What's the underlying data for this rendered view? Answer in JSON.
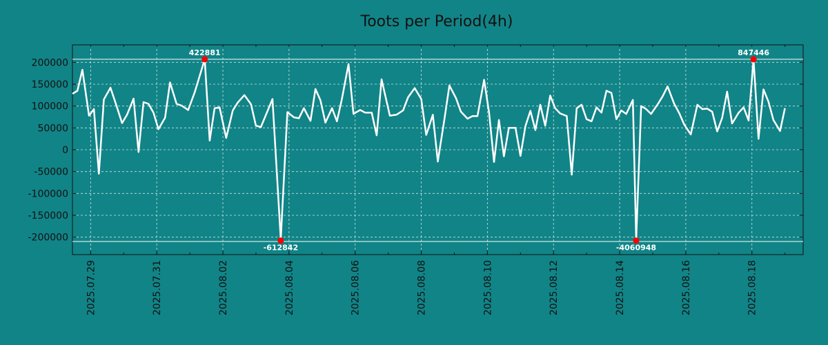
{
  "chart_data": {
    "type": "line",
    "title": "Toots per Period(4h)",
    "xlabel": "",
    "ylabel": "",
    "ylim": [
      -240000,
      240000
    ],
    "x_range": [
      -0.55,
      21.55
    ],
    "grid": true,
    "yticks": [
      -200000,
      -150000,
      -100000,
      -50000,
      0,
      50000,
      100000,
      150000,
      200000
    ],
    "ytick_labels": [
      "-200000",
      "-150000",
      "-100000",
      "-50000",
      "0",
      "50000",
      "100000",
      "150000",
      "200000"
    ],
    "xticks": [
      0,
      2,
      4,
      6,
      8,
      10,
      12,
      14,
      16,
      18,
      20
    ],
    "xtick_labels": [
      "2025.07.29",
      "2025.07.31",
      "2025.08.02",
      "2025.08.04",
      "2025.08.06",
      "2025.08.08",
      "2025.08.10",
      "2025.08.12",
      "2025.08.14",
      "2025.08.16",
      "2025.08.18"
    ],
    "series": [
      {
        "name": "toots",
        "color": "#ffffff",
        "points": [
          [
            -0.55,
            128000
          ],
          [
            -0.4,
            135000
          ],
          [
            -0.25,
            183000
          ],
          [
            -0.05,
            78000
          ],
          [
            0.1,
            93000
          ],
          [
            0.25,
            -55000
          ],
          [
            0.4,
            115000
          ],
          [
            0.6,
            142000
          ],
          [
            0.75,
            108000
          ],
          [
            0.95,
            61000
          ],
          [
            1.1,
            80000
          ],
          [
            1.3,
            117000
          ],
          [
            1.45,
            -5000
          ],
          [
            1.6,
            109000
          ],
          [
            1.75,
            105000
          ],
          [
            1.9,
            85000
          ],
          [
            2.05,
            47000
          ],
          [
            2.25,
            73000
          ],
          [
            2.4,
            154000
          ],
          [
            2.6,
            105000
          ],
          [
            2.75,
            101000
          ],
          [
            2.95,
            91000
          ],
          [
            3.15,
            132000
          ],
          [
            3.45,
            207000
          ],
          [
            3.6,
            21000
          ],
          [
            3.75,
            95000
          ],
          [
            3.9,
            97000
          ],
          [
            4.1,
            27000
          ],
          [
            4.3,
            90000
          ],
          [
            4.45,
            108000
          ],
          [
            4.65,
            125000
          ],
          [
            4.85,
            104000
          ],
          [
            5.0,
            55000
          ],
          [
            5.15,
            52000
          ],
          [
            5.5,
            116000
          ],
          [
            5.75,
            -205000
          ],
          [
            5.95,
            86000
          ],
          [
            6.15,
            74000
          ],
          [
            6.3,
            72000
          ],
          [
            6.45,
            95000
          ],
          [
            6.65,
            66000
          ],
          [
            6.8,
            139000
          ],
          [
            6.95,
            113000
          ],
          [
            7.1,
            62000
          ],
          [
            7.3,
            95000
          ],
          [
            7.45,
            65000
          ],
          [
            7.6,
            116000
          ],
          [
            7.8,
            196000
          ],
          [
            7.95,
            82000
          ],
          [
            8.15,
            91000
          ],
          [
            8.3,
            85000
          ],
          [
            8.5,
            85000
          ],
          [
            8.65,
            33000
          ],
          [
            8.8,
            161000
          ],
          [
            9.05,
            78000
          ],
          [
            9.25,
            80000
          ],
          [
            9.45,
            90000
          ],
          [
            9.6,
            120000
          ],
          [
            9.8,
            141000
          ],
          [
            10.0,
            116000
          ],
          [
            10.15,
            34000
          ],
          [
            10.35,
            80000
          ],
          [
            10.5,
            -27000
          ],
          [
            10.7,
            70000
          ],
          [
            10.85,
            147000
          ],
          [
            11.05,
            118000
          ],
          [
            11.2,
            87000
          ],
          [
            11.4,
            71000
          ],
          [
            11.55,
            77000
          ],
          [
            11.7,
            77000
          ],
          [
            11.9,
            160000
          ],
          [
            12.05,
            85000
          ],
          [
            12.2,
            -28000
          ],
          [
            12.35,
            68000
          ],
          [
            12.5,
            -15000
          ],
          [
            12.65,
            50000
          ],
          [
            12.85,
            50000
          ],
          [
            13.0,
            -14000
          ],
          [
            13.15,
            54000
          ],
          [
            13.3,
            89000
          ],
          [
            13.45,
            45000
          ],
          [
            13.6,
            103000
          ],
          [
            13.75,
            55000
          ],
          [
            13.9,
            124000
          ],
          [
            14.05,
            95000
          ],
          [
            14.2,
            83000
          ],
          [
            14.4,
            77000
          ],
          [
            14.55,
            -57000
          ],
          [
            14.7,
            95000
          ],
          [
            14.85,
            103000
          ],
          [
            15.0,
            70000
          ],
          [
            15.15,
            65000
          ],
          [
            15.3,
            97000
          ],
          [
            15.45,
            85000
          ],
          [
            15.6,
            135000
          ],
          [
            15.75,
            130000
          ],
          [
            15.9,
            70000
          ],
          [
            16.05,
            90000
          ],
          [
            16.2,
            82000
          ],
          [
            16.4,
            114000
          ],
          [
            16.5,
            -205000
          ],
          [
            16.65,
            100000
          ],
          [
            16.8,
            93000
          ],
          [
            16.95,
            82000
          ],
          [
            17.15,
            104000
          ],
          [
            17.3,
            122000
          ],
          [
            17.45,
            145000
          ],
          [
            17.65,
            105000
          ],
          [
            17.8,
            84000
          ],
          [
            17.95,
            58000
          ],
          [
            18.15,
            35000
          ],
          [
            18.35,
            103000
          ],
          [
            18.5,
            93000
          ],
          [
            18.65,
            94000
          ],
          [
            18.8,
            87000
          ],
          [
            18.95,
            42000
          ],
          [
            19.1,
            73000
          ],
          [
            19.25,
            133000
          ],
          [
            19.4,
            60000
          ],
          [
            19.6,
            85000
          ],
          [
            19.75,
            97000
          ],
          [
            19.9,
            67000
          ],
          [
            20.05,
            207000
          ],
          [
            20.2,
            25000
          ],
          [
            20.35,
            138000
          ],
          [
            20.5,
            110000
          ],
          [
            20.65,
            68000
          ],
          [
            20.85,
            43000
          ],
          [
            21.0,
            95000
          ]
        ]
      }
    ],
    "reference_lines": [
      207000,
      -210000
    ],
    "annotations": [
      {
        "x": 3.45,
        "y": 207000,
        "label": "422881",
        "position": "above"
      },
      {
        "x": 5.75,
        "y": -208000,
        "label": "-612842",
        "position": "below"
      },
      {
        "x": 16.5,
        "y": -208000,
        "label": "-4060948",
        "position": "below"
      },
      {
        "x": 20.05,
        "y": 207000,
        "label": "847446",
        "position": "above"
      }
    ]
  }
}
